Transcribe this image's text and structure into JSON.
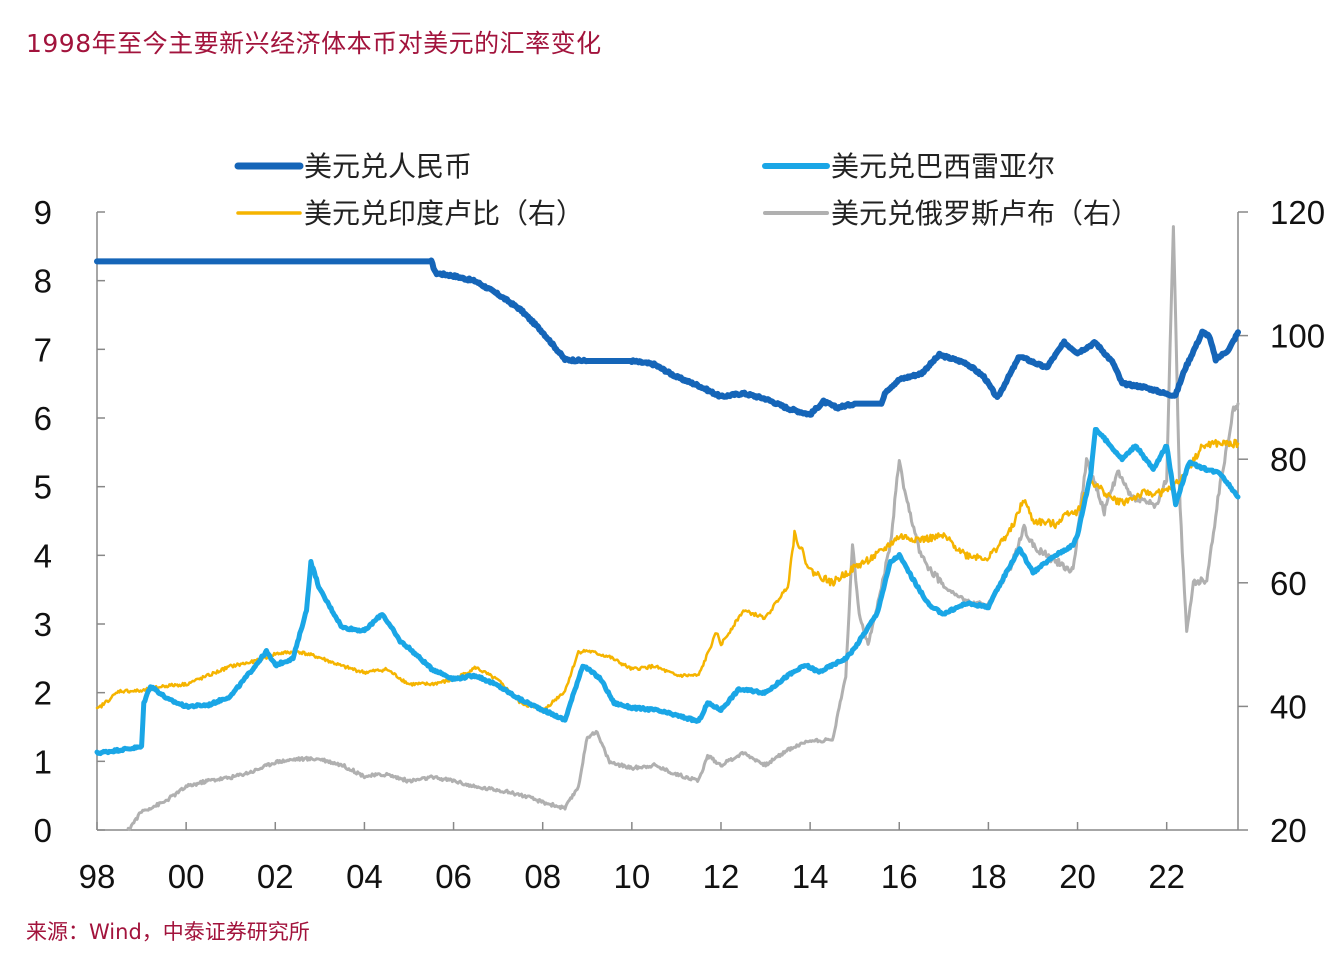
{
  "title": "1998年至今主要新兴经济体本币对美元的汇率变化",
  "source": "来源：Wind，中泰证券研究所",
  "colors": {
    "title": "#a2133c",
    "cny": "#1565b8",
    "brl": "#1aa6e6",
    "inr": "#f5b400",
    "rub": "#b0b0b0",
    "axis": "#888888"
  },
  "chart_data": {
    "type": "line",
    "x_ticks": [
      "98",
      "00",
      "02",
      "04",
      "06",
      "08",
      "10",
      "12",
      "14",
      "16",
      "18",
      "20",
      "22"
    ],
    "x_range": [
      1998,
      2023.6
    ],
    "y_left": {
      "ticks": [
        "0",
        "1",
        "2",
        "3",
        "4",
        "5",
        "6",
        "7",
        "8",
        "9"
      ],
      "range": [
        0,
        9
      ]
    },
    "y_right": {
      "ticks": [
        "20",
        "40",
        "60",
        "80",
        "100",
        "120"
      ],
      "range": [
        20,
        120
      ]
    },
    "grid": false,
    "legend_position": "top",
    "series": [
      {
        "name": "美元兑人民币",
        "axis": "left",
        "color": "#1565b8",
        "data": [
          [
            1998,
            8.28
          ],
          [
            2005.5,
            8.28
          ],
          [
            2005.6,
            8.11
          ],
          [
            2006.0,
            8.07
          ],
          [
            2006.5,
            7.99
          ],
          [
            2007.0,
            7.8
          ],
          [
            2007.5,
            7.58
          ],
          [
            2008.0,
            7.25
          ],
          [
            2008.5,
            6.85
          ],
          [
            2009.0,
            6.83
          ],
          [
            2010.0,
            6.83
          ],
          [
            2010.5,
            6.78
          ],
          [
            2011.0,
            6.6
          ],
          [
            2011.5,
            6.47
          ],
          [
            2012.0,
            6.31
          ],
          [
            2012.5,
            6.36
          ],
          [
            2013.0,
            6.28
          ],
          [
            2013.5,
            6.14
          ],
          [
            2014.0,
            6.05
          ],
          [
            2014.3,
            6.24
          ],
          [
            2014.6,
            6.15
          ],
          [
            2015.0,
            6.21
          ],
          [
            2015.6,
            6.21
          ],
          [
            2015.7,
            6.39
          ],
          [
            2016.0,
            6.56
          ],
          [
            2016.5,
            6.65
          ],
          [
            2016.9,
            6.92
          ],
          [
            2017.5,
            6.8
          ],
          [
            2017.9,
            6.6
          ],
          [
            2018.2,
            6.29
          ],
          [
            2018.7,
            6.9
          ],
          [
            2019.3,
            6.73
          ],
          [
            2019.7,
            7.1
          ],
          [
            2020.0,
            6.95
          ],
          [
            2020.4,
            7.1
          ],
          [
            2020.8,
            6.8
          ],
          [
            2021.0,
            6.5
          ],
          [
            2021.5,
            6.45
          ],
          [
            2022.0,
            6.35
          ],
          [
            2022.2,
            6.33
          ],
          [
            2022.4,
            6.7
          ],
          [
            2022.8,
            7.25
          ],
          [
            2022.95,
            7.2
          ],
          [
            2023.1,
            6.85
          ],
          [
            2023.4,
            7.0
          ],
          [
            2023.6,
            7.25
          ]
        ]
      },
      {
        "name": "美元兑巴西雷亚尔",
        "axis": "left",
        "color": "#1aa6e6",
        "data": [
          [
            1998,
            1.12
          ],
          [
            1999.0,
            1.21
          ],
          [
            1999.05,
            1.85
          ],
          [
            1999.2,
            2.1
          ],
          [
            1999.6,
            1.9
          ],
          [
            2000.0,
            1.8
          ],
          [
            2000.5,
            1.82
          ],
          [
            2001.0,
            1.95
          ],
          [
            2001.5,
            2.35
          ],
          [
            2001.8,
            2.6
          ],
          [
            2002.0,
            2.4
          ],
          [
            2002.4,
            2.5
          ],
          [
            2002.7,
            3.2
          ],
          [
            2002.8,
            3.9
          ],
          [
            2003.0,
            3.5
          ],
          [
            2003.5,
            2.95
          ],
          [
            2004.0,
            2.9
          ],
          [
            2004.4,
            3.15
          ],
          [
            2004.8,
            2.75
          ],
          [
            2005.0,
            2.65
          ],
          [
            2005.5,
            2.35
          ],
          [
            2006.0,
            2.2
          ],
          [
            2006.5,
            2.25
          ],
          [
            2007.0,
            2.1
          ],
          [
            2007.5,
            1.9
          ],
          [
            2008.0,
            1.75
          ],
          [
            2008.5,
            1.6
          ],
          [
            2008.7,
            2.0
          ],
          [
            2008.9,
            2.4
          ],
          [
            2009.3,
            2.2
          ],
          [
            2009.6,
            1.85
          ],
          [
            2010.0,
            1.78
          ],
          [
            2010.5,
            1.75
          ],
          [
            2011.0,
            1.67
          ],
          [
            2011.5,
            1.58
          ],
          [
            2011.7,
            1.85
          ],
          [
            2012.0,
            1.75
          ],
          [
            2012.4,
            2.05
          ],
          [
            2013.0,
            2.0
          ],
          [
            2013.5,
            2.25
          ],
          [
            2013.9,
            2.4
          ],
          [
            2014.2,
            2.3
          ],
          [
            2014.8,
            2.5
          ],
          [
            2015.0,
            2.65
          ],
          [
            2015.5,
            3.15
          ],
          [
            2015.8,
            3.9
          ],
          [
            2016.0,
            4.0
          ],
          [
            2016.4,
            3.55
          ],
          [
            2016.7,
            3.25
          ],
          [
            2017.0,
            3.15
          ],
          [
            2017.5,
            3.3
          ],
          [
            2018.0,
            3.25
          ],
          [
            2018.4,
            3.75
          ],
          [
            2018.7,
            4.1
          ],
          [
            2019.0,
            3.75
          ],
          [
            2019.5,
            4.0
          ],
          [
            2019.9,
            4.15
          ],
          [
            2020.0,
            4.3
          ],
          [
            2020.3,
            5.2
          ],
          [
            2020.4,
            5.85
          ],
          [
            2020.8,
            5.55
          ],
          [
            2021.0,
            5.4
          ],
          [
            2021.3,
            5.6
          ],
          [
            2021.7,
            5.25
          ],
          [
            2022.0,
            5.6
          ],
          [
            2022.2,
            4.75
          ],
          [
            2022.5,
            5.35
          ],
          [
            2022.9,
            5.25
          ],
          [
            2023.2,
            5.2
          ],
          [
            2023.6,
            4.85
          ]
        ]
      },
      {
        "name": "美元兑印度卢比（右）",
        "axis": "right",
        "color": "#f5b400",
        "data": [
          [
            1998,
            39.5
          ],
          [
            1998.5,
            42.5
          ],
          [
            1999.0,
            42.5
          ],
          [
            1999.5,
            43.3
          ],
          [
            2000.0,
            43.6
          ],
          [
            2000.5,
            45.0
          ],
          [
            2001.0,
            46.5
          ],
          [
            2001.5,
            47.2
          ],
          [
            2002.0,
            48.5
          ],
          [
            2002.5,
            48.9
          ],
          [
            2003.0,
            47.9
          ],
          [
            2003.5,
            46.5
          ],
          [
            2004.0,
            45.5
          ],
          [
            2004.5,
            46.0
          ],
          [
            2005.0,
            43.6
          ],
          [
            2005.5,
            43.6
          ],
          [
            2006.0,
            44.3
          ],
          [
            2006.5,
            46.3
          ],
          [
            2007.0,
            44.2
          ],
          [
            2007.5,
            40.6
          ],
          [
            2008.0,
            39.3
          ],
          [
            2008.5,
            42.5
          ],
          [
            2008.8,
            48.8
          ],
          [
            2009.0,
            49.0
          ],
          [
            2009.5,
            48.0
          ],
          [
            2010.0,
            46.0
          ],
          [
            2010.5,
            46.5
          ],
          [
            2011.0,
            45.0
          ],
          [
            2011.5,
            45.0
          ],
          [
            2011.9,
            52.0
          ],
          [
            2012.0,
            50.0
          ],
          [
            2012.5,
            55.5
          ],
          [
            2013.0,
            54.3
          ],
          [
            2013.5,
            59.5
          ],
          [
            2013.65,
            68.0
          ],
          [
            2014.0,
            62.0
          ],
          [
            2014.5,
            60.0
          ],
          [
            2015.0,
            62.5
          ],
          [
            2015.5,
            64.5
          ],
          [
            2016.0,
            67.5
          ],
          [
            2016.5,
            67.0
          ],
          [
            2017.0,
            67.5
          ],
          [
            2017.5,
            64.5
          ],
          [
            2018.0,
            64.0
          ],
          [
            2018.5,
            68.5
          ],
          [
            2018.8,
            73.5
          ],
          [
            2019.0,
            70.0
          ],
          [
            2019.5,
            69.5
          ],
          [
            2019.8,
            71.5
          ],
          [
            2020.0,
            71.5
          ],
          [
            2020.3,
            76.5
          ],
          [
            2020.8,
            73.5
          ],
          [
            2021.0,
            73.0
          ],
          [
            2021.5,
            74.5
          ],
          [
            2021.8,
            74.5
          ],
          [
            2022.0,
            74.8
          ],
          [
            2022.3,
            76.5
          ],
          [
            2022.8,
            82.0
          ],
          [
            2023.0,
            82.5
          ],
          [
            2023.6,
            82.5
          ]
        ]
      },
      {
        "name": "美元兑俄罗斯卢布（右）",
        "axis": "right",
        "color": "#b0b0b0",
        "data": [
          [
            1998.7,
            20.0
          ],
          [
            1999.0,
            23.0
          ],
          [
            1999.5,
            24.5
          ],
          [
            2000.0,
            27.0
          ],
          [
            2000.5,
            28.0
          ],
          [
            2001.0,
            28.5
          ],
          [
            2001.5,
            29.5
          ],
          [
            2002.0,
            31.0
          ],
          [
            2002.5,
            31.5
          ],
          [
            2003.0,
            31.5
          ],
          [
            2003.5,
            30.5
          ],
          [
            2004.0,
            28.7
          ],
          [
            2004.5,
            29.0
          ],
          [
            2005.0,
            27.9
          ],
          [
            2005.5,
            28.5
          ],
          [
            2006.0,
            28.0
          ],
          [
            2006.5,
            26.9
          ],
          [
            2007.0,
            26.5
          ],
          [
            2007.5,
            25.7
          ],
          [
            2008.0,
            24.5
          ],
          [
            2008.5,
            23.5
          ],
          [
            2008.8,
            27.0
          ],
          [
            2009.0,
            35.0
          ],
          [
            2009.2,
            36.0
          ],
          [
            2009.5,
            31.0
          ],
          [
            2010.0,
            30.0
          ],
          [
            2010.5,
            30.5
          ],
          [
            2011.0,
            29.0
          ],
          [
            2011.5,
            28.0
          ],
          [
            2011.7,
            32.0
          ],
          [
            2012.0,
            30.5
          ],
          [
            2012.5,
            32.5
          ],
          [
            2013.0,
            30.5
          ],
          [
            2013.5,
            33.0
          ],
          [
            2014.0,
            34.5
          ],
          [
            2014.5,
            34.5
          ],
          [
            2014.8,
            45.0
          ],
          [
            2014.95,
            66.0
          ],
          [
            2015.1,
            55.0
          ],
          [
            2015.3,
            50.0
          ],
          [
            2015.5,
            56.0
          ],
          [
            2015.8,
            66.0
          ],
          [
            2016.0,
            80.0
          ],
          [
            2016.1,
            75.0
          ],
          [
            2016.5,
            64.0
          ],
          [
            2017.0,
            59.5
          ],
          [
            2017.5,
            57.0
          ],
          [
            2018.0,
            56.5
          ],
          [
            2018.5,
            62.5
          ],
          [
            2018.8,
            69.0
          ],
          [
            2019.0,
            66.0
          ],
          [
            2019.5,
            63.5
          ],
          [
            2019.9,
            62.0
          ],
          [
            2020.2,
            80.0
          ],
          [
            2020.6,
            71.5
          ],
          [
            2020.9,
            78.0
          ],
          [
            2021.2,
            74.0
          ],
          [
            2021.8,
            72.5
          ],
          [
            2022.0,
            77.0
          ],
          [
            2022.15,
            118.0
          ],
          [
            2022.3,
            72.0
          ],
          [
            2022.45,
            52.0
          ],
          [
            2022.6,
            60.0
          ],
          [
            2022.9,
            60.5
          ],
          [
            2023.2,
            76.0
          ],
          [
            2023.5,
            88.0
          ],
          [
            2023.6,
            89.0
          ]
        ]
      }
    ]
  }
}
